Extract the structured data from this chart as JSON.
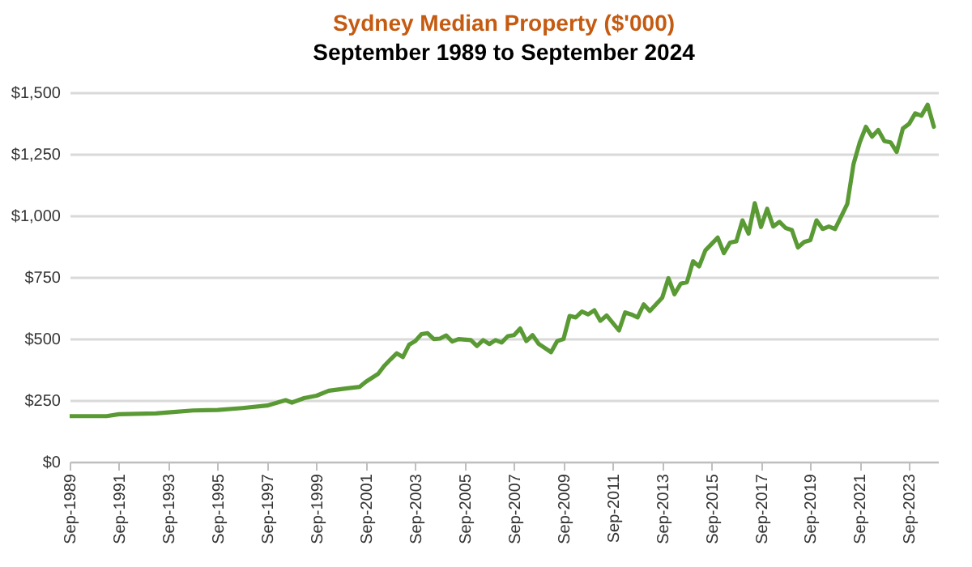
{
  "chart_data": {
    "type": "line",
    "title": "Sydney Median Property ($'000)",
    "subtitle": "September 1989 to September 2024",
    "x": [
      "1989-09",
      "1990-03",
      "1991-03",
      "1991-09",
      "1993-03",
      "1993-09",
      "1994-09",
      "1995-09",
      "1996-09",
      "1997-09",
      "1998-06",
      "1998-09",
      "1999-03",
      "1999-09",
      "2000-03",
      "2000-12",
      "2001-06",
      "2001-09",
      "2002-03",
      "2002-06",
      "2002-09",
      "2002-12",
      "2003-03",
      "2003-06",
      "2003-09",
      "2003-12",
      "2004-03",
      "2004-06",
      "2004-09",
      "2004-12",
      "2005-03",
      "2005-06",
      "2005-12",
      "2006-03",
      "2006-06",
      "2006-09",
      "2006-12",
      "2007-03",
      "2007-06",
      "2007-09",
      "2007-12",
      "2008-03",
      "2008-06",
      "2008-09",
      "2009-03",
      "2009-06",
      "2009-09",
      "2009-12",
      "2010-03",
      "2010-06",
      "2010-09",
      "2010-12",
      "2011-03",
      "2011-06",
      "2011-12",
      "2012-03",
      "2012-06",
      "2012-09",
      "2012-12",
      "2013-03",
      "2013-09",
      "2013-12",
      "2014-03",
      "2014-06",
      "2014-09",
      "2014-12",
      "2015-03",
      "2015-06",
      "2015-12",
      "2016-03",
      "2016-06",
      "2016-09",
      "2016-12",
      "2017-03",
      "2017-06",
      "2017-09",
      "2017-12",
      "2018-03",
      "2018-06",
      "2018-09",
      "2018-12",
      "2019-03",
      "2019-06",
      "2019-09",
      "2019-12",
      "2020-03",
      "2020-06",
      "2020-09",
      "2021-03",
      "2021-06",
      "2021-09",
      "2021-12",
      "2022-03",
      "2022-06",
      "2022-09",
      "2022-12",
      "2023-03",
      "2023-06",
      "2023-09",
      "2023-12",
      "2024-03",
      "2024-06",
      "2024-09"
    ],
    "series": [
      {
        "color": "#5a9a35",
        "values": [
          185,
          185,
          185,
          193,
          196,
          200,
          208,
          210,
          218,
          228,
          250,
          240,
          258,
          268,
          288,
          298,
          304,
          325,
          357,
          390,
          416,
          440,
          425,
          475,
          490,
          518,
          522,
          498,
          500,
          513,
          488,
          498,
          494,
          470,
          494,
          478,
          494,
          484,
          510,
          514,
          541,
          490,
          514,
          478,
          445,
          490,
          498,
          592,
          586,
          610,
          598,
          615,
          572,
          594,
          533,
          606,
          598,
          586,
          639,
          612,
          666,
          745,
          680,
          723,
          729,
          814,
          793,
          858,
          910,
          847,
          890,
          895,
          980,
          926,
          1050,
          953,
          1027,
          955,
          974,
          949,
          941,
          870,
          892,
          900,
          980,
          945,
          955,
          945,
          1047,
          1209,
          1297,
          1360,
          1320,
          1347,
          1302,
          1297,
          1258,
          1353,
          1372,
          1415,
          1405,
          1450,
          1360
        ]
      }
    ],
    "xlim": [
      "1989-09",
      "2024-11"
    ],
    "xticks": [
      {
        "value": "1989-09",
        "label": "Sep-1989"
      },
      {
        "value": "1991-09",
        "label": "Sep-1991"
      },
      {
        "value": "1993-09",
        "label": "Sep-1993"
      },
      {
        "value": "1995-09",
        "label": "Sep-1995"
      },
      {
        "value": "1997-09",
        "label": "Sep-1997"
      },
      {
        "value": "1999-09",
        "label": "Sep-1999"
      },
      {
        "value": "2001-09",
        "label": "Sep-2001"
      },
      {
        "value": "2003-09",
        "label": "Sep-2003"
      },
      {
        "value": "2005-09",
        "label": "Sep-2005"
      },
      {
        "value": "2007-09",
        "label": "Sep-2007"
      },
      {
        "value": "2009-09",
        "label": "Sep-2009"
      },
      {
        "value": "2011-09",
        "label": "Sep-2011"
      },
      {
        "value": "2013-09",
        "label": "Sep-2013"
      },
      {
        "value": "2015-09",
        "label": "Sep-2015"
      },
      {
        "value": "2017-09",
        "label": "Sep-2017"
      },
      {
        "value": "2019-09",
        "label": "Sep-2019"
      },
      {
        "value": "2021-09",
        "label": "Sep-2021"
      },
      {
        "value": "2023-09",
        "label": "Sep-2023"
      }
    ],
    "ylim": [
      0,
      1500
    ],
    "yticks": [
      {
        "value": 0,
        "label": "$0"
      },
      {
        "value": 250,
        "label": "$250"
      },
      {
        "value": 500,
        "label": "$500"
      },
      {
        "value": 750,
        "label": "$750"
      },
      {
        "value": 1000,
        "label": "$1,000"
      },
      {
        "value": 1250,
        "label": "$1,250"
      },
      {
        "value": 1500,
        "label": "$1,500"
      }
    ],
    "grid": "y"
  }
}
